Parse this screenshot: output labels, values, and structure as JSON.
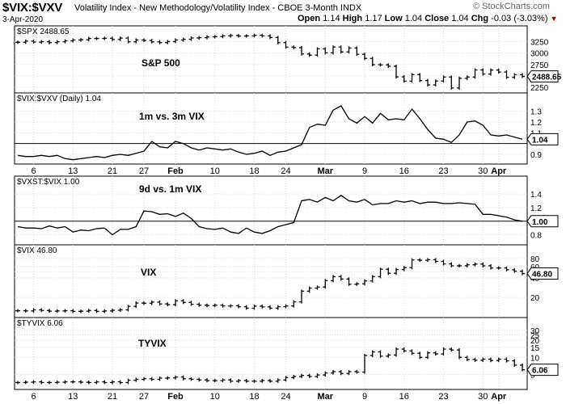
{
  "header": {
    "symbol": "$VIX:$VXV",
    "description": "Volatility Index - New Methodology/Volatility Index - CBOE 3-Month INDX",
    "date": "3-Apr-2020",
    "watermark": "© StockCharts.com",
    "open_label": "Open",
    "open": "1.14",
    "high_label": "High",
    "high": "1.17",
    "low_label": "Low",
    "low": "1.04",
    "close_label": "Close",
    "close": "1.04",
    "chg_label": "Chg",
    "chg": "-0.03 (-3.03%)",
    "chg_marker": "▼"
  },
  "x_axis_labels": [
    {
      "label": "6",
      "index": 2
    },
    {
      "label": "13",
      "index": 7
    },
    {
      "label": "21",
      "index": 12
    },
    {
      "label": "27",
      "index": 16
    },
    {
      "label": "Feb",
      "index": 20
    },
    {
      "label": "10",
      "index": 25
    },
    {
      "label": "18",
      "index": 30
    },
    {
      "label": "24",
      "index": 34
    },
    {
      "label": "Mar",
      "index": 39
    },
    {
      "label": "9",
      "index": 44
    },
    {
      "label": "16",
      "index": 49
    },
    {
      "label": "23",
      "index": 54
    },
    {
      "label": "30",
      "index": 59
    },
    {
      "label": "Apr",
      "index": 61
    }
  ],
  "chart_data": [
    {
      "id": "spx",
      "type": "ohlc",
      "legend": "$SPX 2488.65",
      "annotation": "S&P 500",
      "last_value": "2488.65",
      "ylim": [
        2200,
        3380
      ],
      "yticks": [
        3250,
        3000,
        2750,
        2500,
        2250
      ],
      "values": [
        3234,
        3258,
        3237,
        3246,
        3226,
        3245,
        3265,
        3283,
        3289,
        3316,
        3317,
        3321,
        3295,
        3325,
        3244,
        3283,
        3273,
        3243,
        3226,
        3249,
        3283,
        3298,
        3327,
        3334,
        3352,
        3357,
        3373,
        3380,
        3370,
        3373,
        3386,
        3373,
        3337,
        3225,
        3128,
        3116,
        2979,
        2954,
        3090,
        3003,
        3130,
        3023,
        3108,
        2972,
        2882,
        2746,
        2741,
        2711,
        2480,
        2386,
        2529,
        2399,
        2305,
        2389,
        2475,
        2237,
        2447,
        2475,
        2630,
        2541,
        2627,
        2585,
        2470,
        2526,
        2489
      ]
    },
    {
      "id": "vix_vxv",
      "type": "line",
      "legend": "$VIX:$VXV (Daily) 1.04",
      "annotation": "1m vs. 3m VIX",
      "last_value": "1.04",
      "ylim": [
        0.84,
        1.38
      ],
      "yticks": [
        1.3,
        1.2,
        1.1,
        0.9
      ],
      "reference_line": 1.0,
      "values": [
        0.89,
        0.88,
        0.88,
        0.89,
        0.88,
        0.89,
        0.86,
        0.85,
        0.86,
        0.87,
        0.88,
        0.87,
        0.89,
        0.9,
        0.89,
        0.91,
        0.93,
        1.02,
        0.97,
        0.96,
        1.02,
        1.0,
        0.96,
        0.94,
        0.96,
        0.95,
        0.94,
        0.95,
        0.92,
        0.9,
        0.91,
        0.93,
        0.89,
        0.92,
        0.93,
        0.96,
        0.99,
        1.15,
        1.18,
        1.17,
        1.31,
        1.35,
        1.23,
        1.19,
        1.25,
        1.19,
        1.28,
        1.22,
        1.23,
        1.22,
        1.32,
        1.23,
        1.13,
        1.05,
        1.04,
        1.01,
        1.08,
        1.2,
        1.21,
        1.17,
        1.08,
        1.07,
        1.08,
        1.06,
        1.04
      ]
    },
    {
      "id": "vxst_vix",
      "type": "line",
      "legend": "$VXST:$VIX 1.00",
      "annotation": "9d vs. 1m VIX",
      "last_value": "1.00",
      "ylim": [
        0.7,
        1.52
      ],
      "yticks": [
        1.4,
        1.2,
        0.8
      ],
      "reference_line": 1.0,
      "values": [
        0.92,
        0.9,
        0.9,
        0.89,
        0.93,
        0.9,
        0.92,
        0.84,
        0.87,
        0.86,
        0.89,
        0.9,
        0.8,
        0.88,
        0.88,
        0.92,
        1.15,
        1.14,
        1.1,
        1.11,
        1.07,
        1.12,
        1.04,
        0.92,
        0.89,
        0.88,
        0.9,
        0.84,
        0.82,
        0.9,
        0.84,
        0.82,
        0.86,
        0.92,
        0.95,
        0.98,
        1.3,
        1.32,
        1.28,
        1.35,
        1.3,
        1.38,
        1.3,
        1.28,
        1.32,
        1.24,
        1.26,
        1.26,
        1.3,
        1.28,
        1.3,
        1.26,
        1.28,
        1.28,
        1.26,
        1.26,
        1.27,
        1.26,
        1.25,
        1.1,
        1.1,
        1.08,
        1.06,
        1.02,
        1.0
      ]
    },
    {
      "id": "vix",
      "type": "ohlc",
      "legend": "$VIX 46.80",
      "annotation": "VIX",
      "last_value": "46.80",
      "scale": "log",
      "ylim": [
        11,
        92
      ],
      "yticks": [
        80,
        60,
        50,
        40,
        20
      ],
      "values": [
        12.5,
        12.4,
        12.9,
        12.6,
        12.3,
        12.4,
        12.5,
        12.2,
        12.3,
        12.6,
        12.2,
        12.4,
        12.7,
        12.9,
        14.6,
        16.4,
        16.3,
        17.0,
        15.9,
        15.5,
        17.8,
        16.8,
        15.7,
        15.2,
        15.0,
        15.2,
        14.8,
        14.9,
        14.4,
        13.7,
        14.7,
        14.3,
        13.7,
        14.4,
        14.8,
        17.1,
        25.0,
        27.9,
        29.0,
        36.4,
        42.0,
        38.5,
        32.0,
        32.5,
        36.0,
        41.9,
        54.5,
        47.3,
        53.9,
        57.8,
        75.9,
        75.0,
        76.5,
        72.0,
        66.0,
        61.6,
        61.7,
        63.9,
        65.5,
        61.6,
        57.0,
        57.1,
        53.5,
        50.9,
        46.8
      ]
    },
    {
      "id": "tyvix",
      "type": "ohlc",
      "legend": "$TYVIX 6.06",
      "annotation": "TYVIX",
      "last_value": "6.06",
      "scale": "log",
      "ylim": [
        3.1,
        34
      ],
      "yticks": [
        30,
        25,
        20,
        15,
        10,
        5
      ],
      "values": [
        3.6,
        3.65,
        3.7,
        3.6,
        3.6,
        3.65,
        3.7,
        3.7,
        3.65,
        3.6,
        3.7,
        3.6,
        3.7,
        3.6,
        3.95,
        4.1,
        4.2,
        4.1,
        4.3,
        4.35,
        4.5,
        4.2,
        4.1,
        4.0,
        3.9,
        3.9,
        4.0,
        3.8,
        3.9,
        3.8,
        3.8,
        3.9,
        3.8,
        4.0,
        4.4,
        4.6,
        4.8,
        4.6,
        4.9,
        5.3,
        5.6,
        5.2,
        5.6,
        5.5,
        10.8,
        12.5,
        10.5,
        11.0,
        14.0,
        13.0,
        11.8,
        10.0,
        12.0,
        11.5,
        14.0,
        13.5,
        10.0,
        9.2,
        8.9,
        9.3,
        8.8,
        9.3,
        8.7,
        7.3,
        6.06
      ]
    }
  ]
}
